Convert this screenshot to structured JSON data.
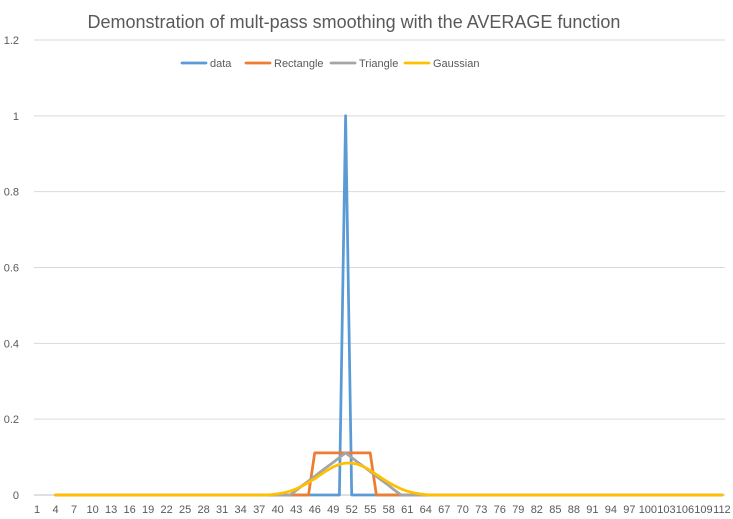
{
  "chart_data": {
    "type": "line",
    "title": "Demonstration of mult-pass smoothing with the AVERAGE function",
    "xlabel": "",
    "ylabel": "",
    "x_range": [
      1,
      112
    ],
    "x_tick_labels": [
      "1",
      "4",
      "7",
      "10",
      "13",
      "16",
      "19",
      "22",
      "25",
      "28",
      "31",
      "34",
      "37",
      "40",
      "43",
      "46",
      "49",
      "52",
      "55",
      "58",
      "61",
      "64",
      "67",
      "70",
      "73",
      "76",
      "79",
      "82",
      "85",
      "88",
      "91",
      "94",
      "97",
      "100",
      "103",
      "106",
      "109",
      "112"
    ],
    "y_ticks": [
      0,
      0.2,
      0.4,
      0.6,
      0.8,
      1,
      1.2
    ],
    "y_tick_labels": [
      "0",
      "0.2",
      "0.4",
      "0.6",
      "0.8",
      "1",
      "1.2"
    ],
    "ylim": [
      0,
      1.2
    ],
    "grid": "horizontal",
    "legend_position": "top",
    "series": [
      {
        "name": "data",
        "color": "#5B9BD5",
        "points": [
          [
            4,
            0
          ],
          [
            50,
            0
          ],
          [
            51,
            1
          ],
          [
            52,
            0
          ],
          [
            112,
            0
          ]
        ]
      },
      {
        "name": "Rectangle",
        "color": "#ED7D31",
        "points": [
          [
            4,
            0
          ],
          [
            45,
            0
          ],
          [
            46,
            0.111
          ],
          [
            55,
            0.111
          ],
          [
            56,
            0
          ],
          [
            112,
            0
          ]
        ]
      },
      {
        "name": "Triangle",
        "color": "#A5A5A5",
        "points": [
          [
            4,
            0
          ],
          [
            42,
            0
          ],
          [
            43,
            0.012
          ],
          [
            44,
            0.025
          ],
          [
            45,
            0.037
          ],
          [
            46,
            0.049
          ],
          [
            47,
            0.062
          ],
          [
            48,
            0.074
          ],
          [
            49,
            0.086
          ],
          [
            50,
            0.099
          ],
          [
            51,
            0.111
          ],
          [
            52,
            0.099
          ],
          [
            53,
            0.086
          ],
          [
            54,
            0.074
          ],
          [
            55,
            0.062
          ],
          [
            56,
            0.049
          ],
          [
            57,
            0.037
          ],
          [
            58,
            0.025
          ],
          [
            59,
            0.012
          ],
          [
            60,
            0
          ],
          [
            112,
            0
          ]
        ]
      },
      {
        "name": "Gaussian",
        "color": "#FFC000",
        "points": [
          [
            4,
            0
          ],
          [
            38,
            0
          ],
          [
            39,
            0.001
          ],
          [
            40,
            0.003
          ],
          [
            41,
            0.006
          ],
          [
            42,
            0.01
          ],
          [
            43,
            0.016
          ],
          [
            44,
            0.024
          ],
          [
            45,
            0.033
          ],
          [
            46,
            0.043
          ],
          [
            47,
            0.054
          ],
          [
            48,
            0.065
          ],
          [
            49,
            0.074
          ],
          [
            50,
            0.081
          ],
          [
            51,
            0.084
          ],
          [
            52,
            0.084
          ],
          [
            53,
            0.081
          ],
          [
            54,
            0.074
          ],
          [
            55,
            0.065
          ],
          [
            56,
            0.054
          ],
          [
            57,
            0.043
          ],
          [
            58,
            0.033
          ],
          [
            59,
            0.024
          ],
          [
            60,
            0.016
          ],
          [
            61,
            0.01
          ],
          [
            62,
            0.006
          ],
          [
            63,
            0.003
          ],
          [
            64,
            0.001
          ],
          [
            65,
            0
          ],
          [
            112,
            0
          ]
        ]
      }
    ]
  }
}
